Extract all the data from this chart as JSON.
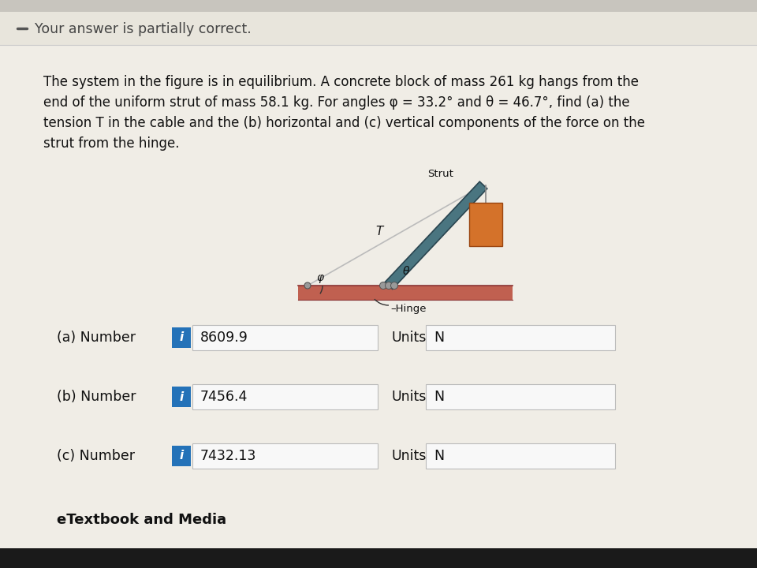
{
  "bg_color_light": "#f0ede6",
  "bg_color_header": "#e8e5dc",
  "bg_color_page": "#cbc8c0",
  "header_text": "Your answer is partially correct.",
  "problem_lines": [
    "The system in the figure is in equilibrium. A concrete block of mass 261 kg hangs from the",
    "end of the uniform strut of mass 58.1 kg. For angles φ = 33.2° and θ = 46.7°, find (a) the",
    "tension T in the cable and the (b) horizontal and (c) vertical components of the force on the",
    "strut from the hinge."
  ],
  "parts": [
    {
      "label": "(a) Number",
      "value": "8609.9",
      "units": "N"
    },
    {
      "label": "(b) Number",
      "value": "7456.4",
      "units": "N"
    },
    {
      "label": "(c) Number",
      "value": "7432.13",
      "units": "N"
    }
  ],
  "footer_text": "eTextbook and Media",
  "strut_label": "Strut",
  "hinge_label": "–Hinge",
  "cable_label": "T",
  "theta_label": "θ",
  "phi_label": "φ",
  "info_btn_color": "#2472b8",
  "input_bg": "#f8f8f8",
  "input_border": "#bbbbbb",
  "strut_color": "#4a7580",
  "strut_edge_color": "#2a4550",
  "block_color": "#d4722a",
  "ground_color": "#c06050",
  "ground_edge": "#8b3535",
  "cable_color": "#aaaaaa",
  "hinge_color": "#888888",
  "text_color": "#111111",
  "header_text_color": "#444444"
}
